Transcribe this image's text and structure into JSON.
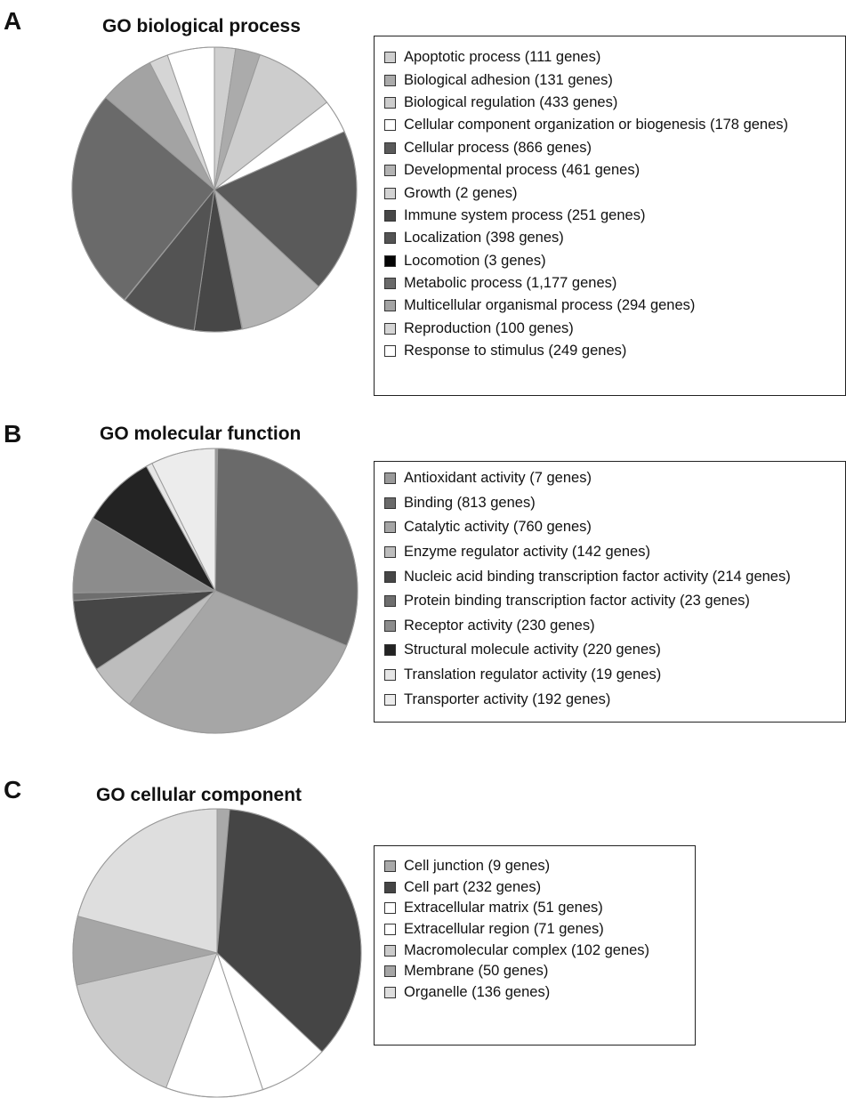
{
  "chart_data": [
    {
      "type": "pie",
      "panel": "A",
      "title": "GO biological process",
      "labels": [
        "Apoptotic process (111 genes)",
        "Biological adhesion (131 genes)",
        "Biological regulation (433 genes)",
        "Cellular component organization or biogenesis (178 genes)",
        "Cellular process (866 genes)",
        "Developmental process (461 genes)",
        "Growth (2 genes)",
        "Immune system process (251 genes)",
        "Localization (398 genes)",
        "Locomotion (3 genes)",
        "Metabolic process (1,177 genes)",
        "Multicellular organismal process (294 genes)",
        "Reproduction (100 genes)",
        "Response to stimulus (249 genes)"
      ],
      "values": [
        111,
        131,
        433,
        178,
        866,
        461,
        2,
        251,
        398,
        3,
        1177,
        294,
        100,
        249
      ],
      "colors": [
        "#cfcfcf",
        "#ababab",
        "#cdcdcd",
        "#ffffff",
        "#5a5a5a",
        "#b3b3b3",
        "#d3d3d3",
        "#474747",
        "#535353",
        "#050505",
        "#6a6a6a",
        "#a3a3a3",
        "#d5d5d5",
        "#ffffff"
      ]
    },
    {
      "type": "pie",
      "panel": "B",
      "title": "GO molecular function",
      "labels": [
        "Antioxidant activity (7 genes)",
        "Binding (813 genes)",
        "Catalytic activity (760 genes)",
        "Enzyme regulator activity (142 genes)",
        "Nucleic acid binding transcription factor activity (214 genes)",
        "Protein binding transcription factor activity (23 genes)",
        "Receptor activity (230 genes)",
        "Structural molecule activity (220 genes)",
        "Translation regulator activity (19 genes)",
        "Transporter activity (192 genes)"
      ],
      "values": [
        7,
        813,
        760,
        142,
        214,
        23,
        230,
        220,
        19,
        192
      ],
      "colors": [
        "#9a9a9a",
        "#6a6a6a",
        "#a6a6a6",
        "#bdbdbd",
        "#464646",
        "#6e6e6e",
        "#8c8c8c",
        "#232323",
        "#e6e6e6",
        "#ececec"
      ]
    },
    {
      "type": "pie",
      "panel": "C",
      "title": "GO cellular component",
      "labels": [
        "Cell junction (9 genes)",
        "Cell part (232 genes)",
        "Extracellular matrix (51 genes)",
        "Extracellular region (71 genes)",
        "Macromolecular complex (102 genes)",
        "Membrane (50 genes)",
        "Organelle (136 genes)"
      ],
      "values": [
        9,
        232,
        51,
        71,
        102,
        50,
        136
      ],
      "colors": [
        "#a9a9a9",
        "#454545",
        "#ffffff",
        "#ffffff",
        "#cbcbcb",
        "#a6a6a6",
        "#dedede"
      ]
    }
  ]
}
